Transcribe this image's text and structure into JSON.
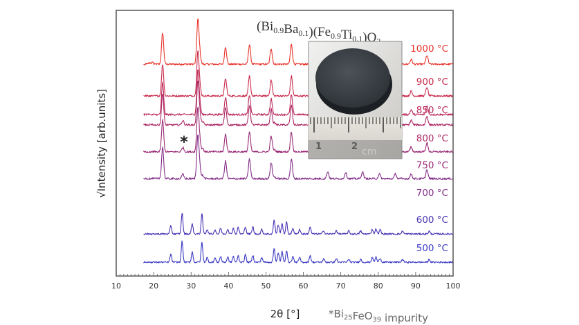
{
  "chart_data": {
    "type": "line",
    "formula": {
      "parts": [
        {
          "t": "(Bi",
          "sub": false
        },
        {
          "t": "0.9",
          "sub": true
        },
        {
          "t": "Ba",
          "sub": false
        },
        {
          "t": "0.1",
          "sub": true
        },
        {
          "t": ")(Fe",
          "sub": false
        },
        {
          "t": "0.9",
          "sub": true
        },
        {
          "t": "Ti",
          "sub": false
        },
        {
          "t": "0.1",
          "sub": true
        },
        {
          "t": ")O",
          "sub": false
        },
        {
          "t": "3",
          "sub": true
        }
      ]
    },
    "xlabel": "2θ [°]",
    "ylabel": "√Intensity [arb.units]",
    "xlim": [
      10,
      100
    ],
    "xticks": [
      10,
      20,
      30,
      40,
      50,
      60,
      70,
      80,
      90,
      100
    ],
    "impurity_marker": "*",
    "footnote": {
      "prefix": "*Bi",
      "sub1": "25",
      "mid": "FeO",
      "sub2": "39",
      "suffix": " impurity"
    },
    "inset": {
      "ruler_numbers": [
        "1",
        "2"
      ],
      "unit": "cm"
    },
    "series": [
      {
        "name": "1000 °C",
        "color": "#e8332a",
        "pattern": "perovskite"
      },
      {
        "name": "900 °C",
        "color": "#c92b4c",
        "pattern": "perovskite"
      },
      {
        "name": "850 °C",
        "color": "#bb2a5a",
        "pattern": "perovskite"
      },
      {
        "name": "800 °C",
        "color": "#ad2a66",
        "pattern": "perovskite_imp"
      },
      {
        "name": "750 °C",
        "color": "#9a2b77",
        "pattern": "perovskite_imp"
      },
      {
        "name": "700 °C",
        "color": "#842d88",
        "pattern": "perovskite_imp"
      },
      {
        "name": "600 °C",
        "color": "#4a33b3",
        "pattern": "sillenite"
      },
      {
        "name": "500 °C",
        "color": "#3a3ac4",
        "pattern": "sillenite"
      }
    ],
    "peaks": {
      "perovskite": [
        [
          22.4,
          1.0
        ],
        [
          31.8,
          1.35
        ],
        [
          32.3,
          0.35
        ],
        [
          39.2,
          0.55
        ],
        [
          45.6,
          0.62
        ],
        [
          51.4,
          0.5
        ],
        [
          56.8,
          0.62
        ],
        [
          66.5,
          0.22
        ],
        [
          71.3,
          0.2
        ],
        [
          75.8,
          0.22
        ],
        [
          80.3,
          0.15
        ],
        [
          84.6,
          0.15
        ],
        [
          88.8,
          0.15
        ],
        [
          93.0,
          0.28
        ]
      ],
      "impurity": [
        [
          27.8,
          0.14
        ],
        [
          33.1,
          0.1
        ],
        [
          52.3,
          0.06
        ]
      ],
      "sillenite": [
        [
          24.6,
          0.35
        ],
        [
          27.6,
          0.9
        ],
        [
          30.3,
          0.45
        ],
        [
          32.9,
          0.85
        ],
        [
          34.3,
          0.2
        ],
        [
          36.4,
          0.18
        ],
        [
          37.9,
          0.25
        ],
        [
          39.8,
          0.22
        ],
        [
          41.3,
          0.25
        ],
        [
          42.6,
          0.28
        ],
        [
          44.5,
          0.32
        ],
        [
          46.5,
          0.3
        ],
        [
          48.9,
          0.2
        ],
        [
          52.2,
          0.6
        ],
        [
          53.3,
          0.38
        ],
        [
          54.3,
          0.45
        ],
        [
          55.5,
          0.5
        ],
        [
          57.2,
          0.25
        ],
        [
          59.0,
          0.2
        ],
        [
          61.8,
          0.3
        ],
        [
          65.4,
          0.15
        ],
        [
          68.8,
          0.15
        ],
        [
          72.1,
          0.13
        ],
        [
          75.3,
          0.13
        ],
        [
          78.4,
          0.2
        ],
        [
          79.4,
          0.22
        ],
        [
          80.5,
          0.18
        ],
        [
          86.5,
          0.13
        ],
        [
          93.6,
          0.12
        ]
      ]
    }
  }
}
